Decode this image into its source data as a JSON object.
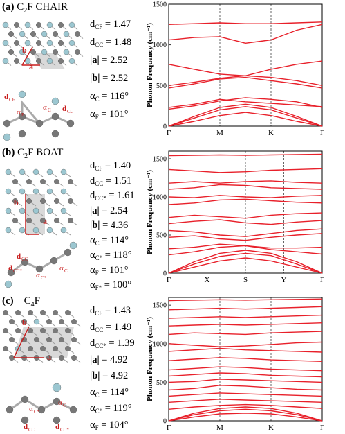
{
  "panels": [
    {
      "id": "a",
      "label": "(a)",
      "title_pre": "C",
      "title_sub": "2",
      "title_post": "F CHAIR",
      "params": [
        {
          "sym": "d",
          "sub": "CF",
          "val": "= 1.47"
        },
        {
          "sym": "d",
          "sub": "CC",
          "val": "= 1.48"
        },
        {
          "sym": "|a|",
          "sub": "",
          "val": "= 2.52"
        },
        {
          "sym": "|b|",
          "sub": "",
          "val": "= 2.52"
        },
        {
          "sym": "α",
          "sub": "C",
          "val": "= 116°"
        },
        {
          "sym": "α",
          "sub": "F",
          "val": "= 101°"
        }
      ],
      "struct_labels": [
        "a",
        "b",
        "d",
        "CF",
        "d",
        "CC",
        "α",
        "F",
        "α",
        "C"
      ]
    },
    {
      "id": "b",
      "label": "(b)",
      "title_pre": "C",
      "title_sub": "2",
      "title_post": "F BOAT",
      "params": [
        {
          "sym": "d",
          "sub": "CF",
          "val": "= 1.40"
        },
        {
          "sym": "d",
          "sub": "CC",
          "val": "= 1.51"
        },
        {
          "sym": "d",
          "sub": "CC*",
          "val": "= 1.61"
        },
        {
          "sym": "|a|",
          "sub": "",
          "val": "= 2.54"
        },
        {
          "sym": "|b|",
          "sub": "",
          "val": "= 4.36"
        },
        {
          "sym": "α",
          "sub": "C",
          "val": "= 114°"
        },
        {
          "sym": "α",
          "sub": "C*",
          "val": "= 118°"
        },
        {
          "sym": "α",
          "sub": "F",
          "val": "= 101°"
        },
        {
          "sym": "α",
          "sub": "F*",
          "val": "= 100°"
        }
      ],
      "struct_labels": [
        "a",
        "b",
        "d",
        "CC",
        "d",
        "CC*",
        "α",
        "C*",
        "α",
        "C"
      ]
    },
    {
      "id": "c",
      "label": "(c)",
      "title_pre": "C",
      "title_sub": "4",
      "title_post": "F",
      "params": [
        {
          "sym": "d",
          "sub": "CF",
          "val": "= 1.43"
        },
        {
          "sym": "d",
          "sub": "CC",
          "val": "= 1.49"
        },
        {
          "sym": "d",
          "sub": "CC*",
          "val": "= 1.39"
        },
        {
          "sym": "|a|",
          "sub": "",
          "val": "= 4.92"
        },
        {
          "sym": "|b|",
          "sub": "",
          "val": "= 4.92"
        },
        {
          "sym": "α",
          "sub": "C",
          "val": "= 114°"
        },
        {
          "sym": "α",
          "sub": "C*",
          "val": "= 119°"
        },
        {
          "sym": "α",
          "sub": "F",
          "val": "= 104°"
        }
      ],
      "struct_labels": [
        "a",
        "b",
        "α",
        "C*",
        "α",
        "C",
        "d",
        "CC",
        "d",
        "CC*"
      ]
    }
  ],
  "chart_data": [
    {
      "type": "line",
      "ylabel": "Phonon Frequency (cm⁻¹)",
      "ylim": [
        0,
        1500
      ],
      "yticks": [
        0,
        500,
        1000,
        1500
      ],
      "kpath": [
        "Γ",
        "M",
        "K",
        "Γ"
      ],
      "series_color": "#e8202a",
      "bands_note": "",
      "bands": [
        [
          0,
          120,
          230,
          270,
          230,
          120,
          0
        ],
        [
          0,
          100,
          200,
          240,
          200,
          100,
          0
        ],
        [
          0,
          60,
          130,
          170,
          130,
          60,
          0
        ],
        [
          210,
          250,
          310,
          350,
          330,
          300,
          230
        ],
        [
          230,
          270,
          330,
          300,
          280,
          260,
          240
        ],
        [
          470,
          520,
          580,
          600,
          560,
          520,
          470
        ],
        [
          500,
          540,
          590,
          620,
          600,
          560,
          500
        ],
        [
          760,
          700,
          640,
          620,
          700,
          760,
          800
        ],
        [
          1060,
          1090,
          1100,
          1020,
          1060,
          1180,
          1250
        ],
        [
          1250,
          1260,
          1270,
          1260,
          1260,
          1270,
          1280
        ]
      ]
    },
    {
      "type": "line",
      "ylabel": "Phonon Frequency (cm⁻¹)",
      "ylim": [
        0,
        1600
      ],
      "yticks": [
        0,
        500,
        1000,
        1500
      ],
      "kpath": [
        "Γ",
        "X",
        "S",
        "Y",
        "Γ"
      ],
      "series_color": "#e8202a",
      "bands_note": "",
      "bands": [
        [
          0,
          150,
          260,
          300,
          260,
          150,
          0
        ],
        [
          0,
          120,
          220,
          260,
          230,
          120,
          0
        ],
        [
          0,
          80,
          160,
          200,
          160,
          80,
          0
        ],
        [
          240,
          280,
          340,
          360,
          310,
          280,
          250
        ],
        [
          320,
          340,
          380,
          360,
          330,
          330,
          340
        ],
        [
          470,
          490,
          450,
          430,
          470,
          500,
          520
        ],
        [
          560,
          540,
          500,
          480,
          520,
          560,
          580
        ],
        [
          650,
          680,
          700,
          660,
          640,
          670,
          690
        ],
        [
          730,
          760,
          740,
          720,
          760,
          780,
          790
        ],
        [
          900,
          920,
          960,
          970,
          950,
          930,
          920
        ],
        [
          1000,
          990,
          1020,
          1000,
          990,
          1010,
          1020
        ],
        [
          1100,
          1120,
          1160,
          1150,
          1120,
          1110,
          1100
        ],
        [
          1180,
          1200,
          1180,
          1200,
          1210,
          1190,
          1180
        ],
        [
          1360,
          1340,
          1320,
          1330,
          1350,
          1360,
          1370
        ],
        [
          1540,
          1545,
          1550,
          1545,
          1550,
          1555,
          1560
        ]
      ]
    },
    {
      "type": "line",
      "ylabel": "Phonon Frequency (cm⁻¹)",
      "ylim": [
        0,
        1600
      ],
      "yticks": [
        0,
        500,
        1000,
        1500
      ],
      "kpath": [
        "Γ",
        "M",
        "K",
        "Γ"
      ],
      "series_color": "#e8202a",
      "bands_note": "",
      "bands": [
        [
          0,
          100,
          160,
          180,
          160,
          100,
          0
        ],
        [
          0,
          80,
          130,
          150,
          130,
          80,
          0
        ],
        [
          0,
          50,
          90,
          100,
          90,
          50,
          0
        ],
        [
          150,
          180,
          200,
          210,
          200,
          180,
          160
        ],
        [
          240,
          260,
          280,
          270,
          260,
          250,
          240
        ],
        [
          320,
          340,
          360,
          350,
          340,
          330,
          320
        ],
        [
          400,
          420,
          460,
          450,
          430,
          410,
          400
        ],
        [
          500,
          510,
          540,
          530,
          520,
          510,
          500
        ],
        [
          580,
          600,
          620,
          610,
          590,
          580,
          570
        ],
        [
          660,
          680,
          700,
          690,
          670,
          660,
          650
        ],
        [
          780,
          800,
          820,
          810,
          790,
          780,
          770
        ],
        [
          900,
          920,
          940,
          920,
          910,
          900,
          890
        ],
        [
          1000,
          980,
          960,
          970,
          990,
          1010,
          1020
        ],
        [
          1120,
          1140,
          1130,
          1120,
          1140,
          1150,
          1160
        ],
        [
          1230,
          1240,
          1250,
          1240,
          1250,
          1260,
          1270
        ],
        [
          1330,
          1340,
          1350,
          1340,
          1350,
          1360,
          1370
        ],
        [
          1440,
          1450,
          1460,
          1450,
          1460,
          1470,
          1480
        ],
        [
          1560,
          1565,
          1570,
          1565,
          1570,
          1575,
          1580
        ]
      ]
    }
  ]
}
